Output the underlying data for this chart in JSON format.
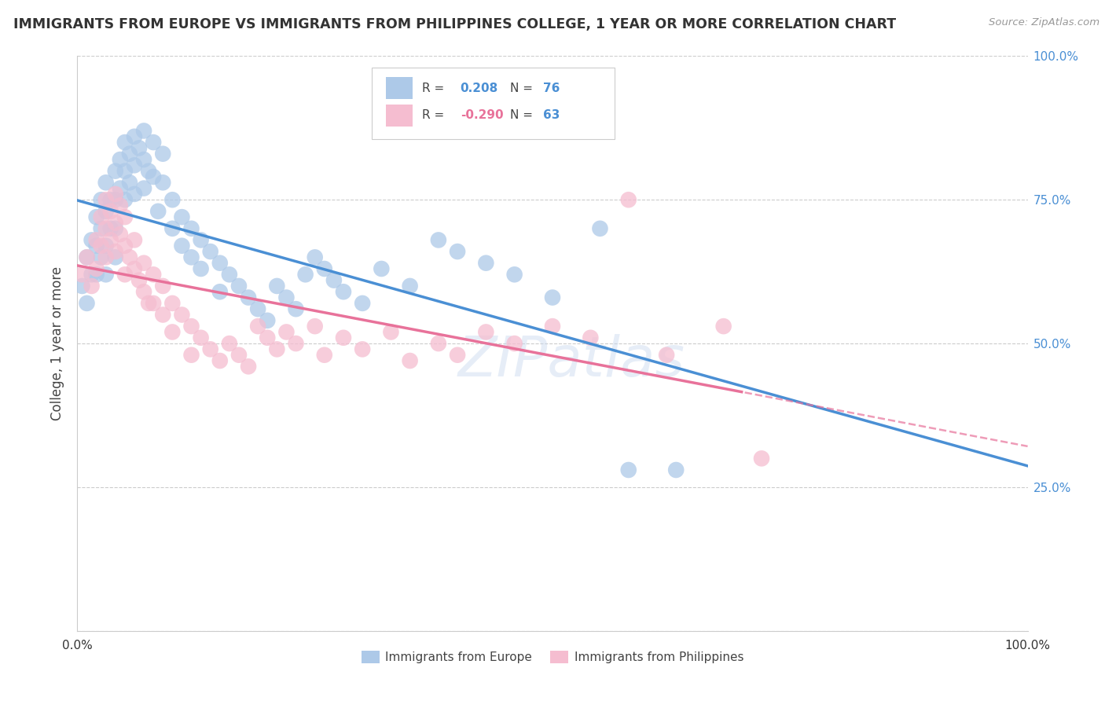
{
  "title": "IMMIGRANTS FROM EUROPE VS IMMIGRANTS FROM PHILIPPINES COLLEGE, 1 YEAR OR MORE CORRELATION CHART",
  "source_text": "Source: ZipAtlas.com",
  "ylabel": "College, 1 year or more",
  "xlim": [
    0.0,
    1.0
  ],
  "ylim": [
    0.0,
    1.0
  ],
  "legend_europe_r": "0.208",
  "legend_europe_n": "76",
  "legend_philippines_r": "-0.290",
  "legend_philippines_n": "63",
  "blue_scatter_color": "#adc9e8",
  "pink_scatter_color": "#f5bdd0",
  "blue_line_color": "#4a8fd4",
  "pink_line_color": "#e8729a",
  "watermark": "ZIPatlas",
  "background_color": "#ffffff",
  "grid_color": "#cccccc",
  "europe_x": [
    0.005,
    0.01,
    0.01,
    0.015,
    0.015,
    0.02,
    0.02,
    0.02,
    0.025,
    0.025,
    0.025,
    0.03,
    0.03,
    0.03,
    0.03,
    0.035,
    0.035,
    0.04,
    0.04,
    0.04,
    0.04,
    0.045,
    0.045,
    0.05,
    0.05,
    0.05,
    0.055,
    0.055,
    0.06,
    0.06,
    0.06,
    0.065,
    0.07,
    0.07,
    0.07,
    0.075,
    0.08,
    0.08,
    0.085,
    0.09,
    0.09,
    0.1,
    0.1,
    0.11,
    0.11,
    0.12,
    0.12,
    0.13,
    0.13,
    0.14,
    0.15,
    0.15,
    0.16,
    0.17,
    0.18,
    0.19,
    0.2,
    0.21,
    0.22,
    0.23,
    0.24,
    0.25,
    0.26,
    0.27,
    0.28,
    0.3,
    0.32,
    0.35,
    0.38,
    0.4,
    0.43,
    0.46,
    0.5,
    0.55,
    0.58,
    0.63
  ],
  "europe_y": [
    0.6,
    0.65,
    0.57,
    0.68,
    0.62,
    0.72,
    0.67,
    0.62,
    0.75,
    0.7,
    0.65,
    0.78,
    0.73,
    0.67,
    0.62,
    0.75,
    0.7,
    0.8,
    0.75,
    0.7,
    0.65,
    0.82,
    0.77,
    0.85,
    0.8,
    0.75,
    0.83,
    0.78,
    0.86,
    0.81,
    0.76,
    0.84,
    0.87,
    0.82,
    0.77,
    0.8,
    0.85,
    0.79,
    0.73,
    0.83,
    0.78,
    0.75,
    0.7,
    0.72,
    0.67,
    0.7,
    0.65,
    0.68,
    0.63,
    0.66,
    0.64,
    0.59,
    0.62,
    0.6,
    0.58,
    0.56,
    0.54,
    0.6,
    0.58,
    0.56,
    0.62,
    0.65,
    0.63,
    0.61,
    0.59,
    0.57,
    0.63,
    0.6,
    0.68,
    0.66,
    0.64,
    0.62,
    0.58,
    0.7,
    0.28,
    0.28
  ],
  "philippines_x": [
    0.005,
    0.01,
    0.015,
    0.02,
    0.02,
    0.025,
    0.025,
    0.03,
    0.03,
    0.03,
    0.035,
    0.035,
    0.04,
    0.04,
    0.04,
    0.045,
    0.045,
    0.05,
    0.05,
    0.05,
    0.055,
    0.06,
    0.06,
    0.065,
    0.07,
    0.07,
    0.075,
    0.08,
    0.08,
    0.09,
    0.09,
    0.1,
    0.1,
    0.11,
    0.12,
    0.12,
    0.13,
    0.14,
    0.15,
    0.16,
    0.17,
    0.18,
    0.19,
    0.2,
    0.21,
    0.22,
    0.23,
    0.25,
    0.26,
    0.28,
    0.3,
    0.33,
    0.35,
    0.38,
    0.4,
    0.43,
    0.46,
    0.5,
    0.54,
    0.58,
    0.62,
    0.68,
    0.72
  ],
  "philippines_y": [
    0.62,
    0.65,
    0.6,
    0.68,
    0.63,
    0.72,
    0.67,
    0.75,
    0.7,
    0.65,
    0.73,
    0.68,
    0.76,
    0.71,
    0.66,
    0.74,
    0.69,
    0.72,
    0.67,
    0.62,
    0.65,
    0.68,
    0.63,
    0.61,
    0.64,
    0.59,
    0.57,
    0.62,
    0.57,
    0.6,
    0.55,
    0.57,
    0.52,
    0.55,
    0.53,
    0.48,
    0.51,
    0.49,
    0.47,
    0.5,
    0.48,
    0.46,
    0.53,
    0.51,
    0.49,
    0.52,
    0.5,
    0.53,
    0.48,
    0.51,
    0.49,
    0.52,
    0.47,
    0.5,
    0.48,
    0.52,
    0.5,
    0.53,
    0.51,
    0.75,
    0.48,
    0.53,
    0.3
  ]
}
